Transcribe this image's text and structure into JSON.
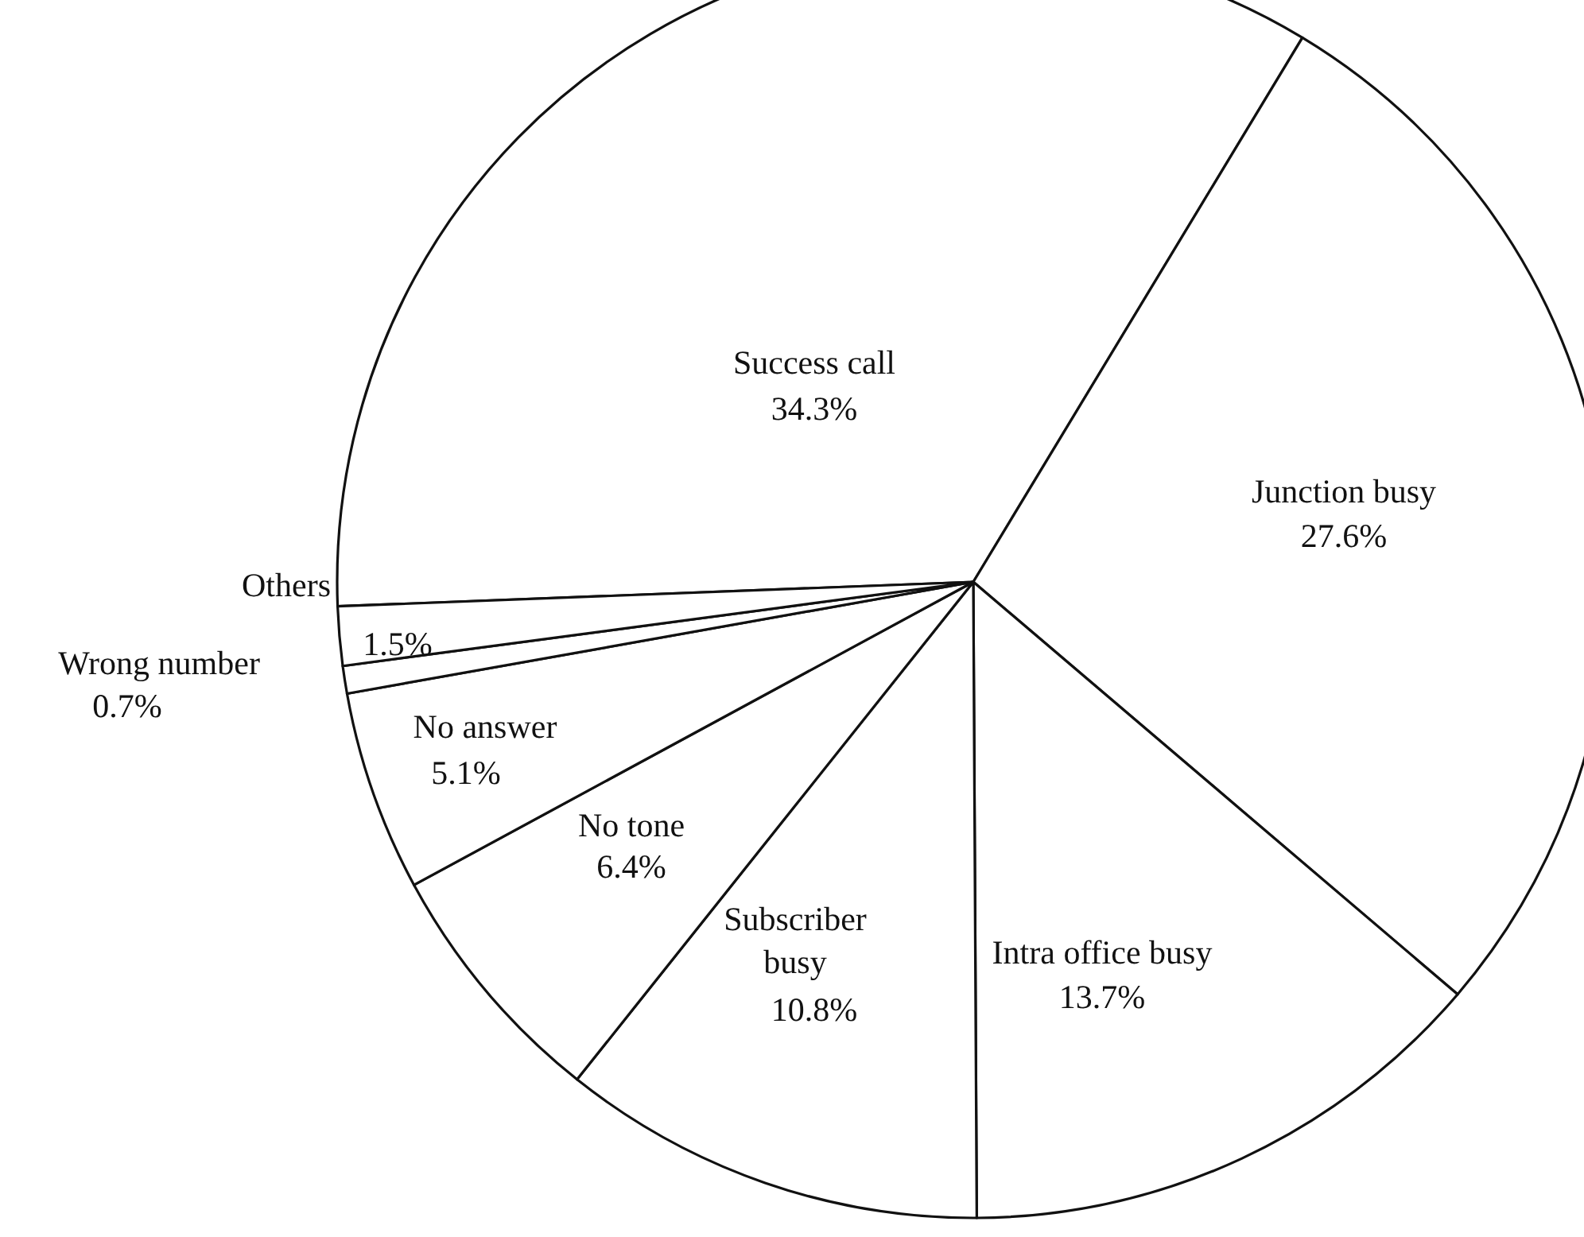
{
  "chart_data": {
    "type": "pie",
    "categories": [
      "Success call",
      "Junction busy",
      "Intra office busy",
      "Subscriber busy",
      "No tone",
      "No answer",
      "Wrong number",
      "Others"
    ],
    "values": [
      34.3,
      27.6,
      13.7,
      10.8,
      6.4,
      5.1,
      0.7,
      1.5
    ],
    "colors": [
      "#ffffff",
      "#ffffff",
      "#ffffff",
      "#ffffff",
      "#ffffff",
      "#ffffff",
      "#ffffff",
      "#ffffff"
    ],
    "value_labels": [
      "34.3%",
      "27.6%",
      "13.7%",
      "10.8%",
      "6.4%",
      "5.1%",
      "0.7%",
      "1.5%"
    ]
  }
}
